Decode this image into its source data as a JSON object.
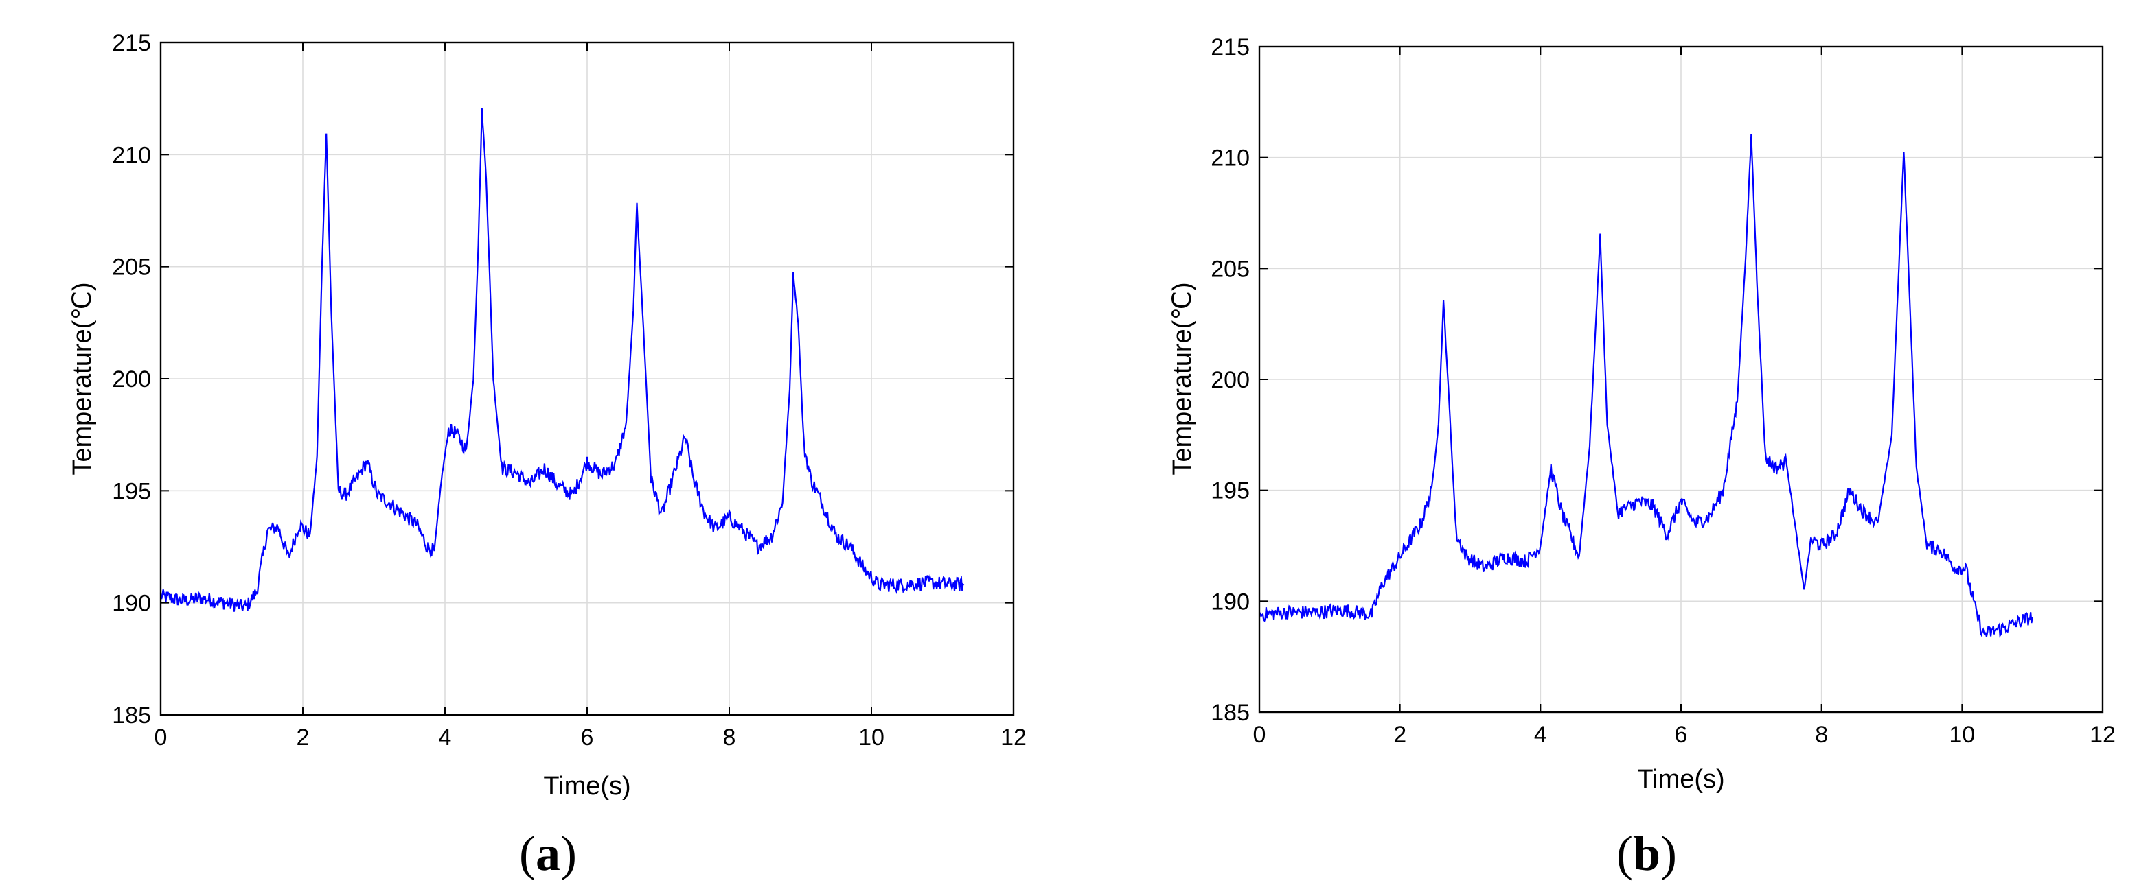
{
  "figure": {
    "panel_labels": [
      {
        "open": "(",
        "letter": "a",
        "close": ")"
      },
      {
        "open": "(",
        "letter": "b",
        "close": ")"
      }
    ]
  },
  "chart_data": [
    {
      "type": "line",
      "xlabel": "Time(s)",
      "ylabel": "Temperature(℃)",
      "xlim": [
        0,
        12
      ],
      "ylim": [
        185,
        215
      ],
      "xticks": [
        0,
        2,
        4,
        6,
        8,
        10,
        12
      ],
      "yticks": [
        185,
        190,
        195,
        200,
        205,
        210,
        215
      ],
      "grid": true,
      "line_color": "#0000ff",
      "series": [
        {
          "x": [
            0,
            0.3,
            0.6,
            0.9,
            1.2,
            1.35,
            1.5,
            1.65,
            1.8,
            1.95,
            2.1,
            2.2,
            2.27,
            2.33,
            2.4,
            2.5,
            2.6,
            2.75,
            2.9,
            3.05,
            3.2,
            3.4,
            3.6,
            3.75,
            3.85,
            3.95,
            4.05,
            4.15,
            4.3,
            4.4,
            4.47,
            4.52,
            4.58,
            4.68,
            4.8,
            5.0,
            5.2,
            5.4,
            5.6,
            5.8,
            6.0,
            6.2,
            6.4,
            6.55,
            6.65,
            6.7,
            6.78,
            6.9,
            7.05,
            7.2,
            7.38,
            7.5,
            7.65,
            7.8,
            8.0,
            8.2,
            8.4,
            8.6,
            8.75,
            8.85,
            8.9,
            8.97,
            9.05,
            9.15,
            9.3,
            9.5,
            9.7,
            9.9,
            10.1,
            10.4,
            10.8,
            11.3
          ],
          "y": [
            190.3,
            190.1,
            190.2,
            190.0,
            189.8,
            190.5,
            193.2,
            193.4,
            192.0,
            193.5,
            193.0,
            196.5,
            205.0,
            211.0,
            203.0,
            195.0,
            194.8,
            195.5,
            196.3,
            194.8,
            194.5,
            194.0,
            193.5,
            192.5,
            192.3,
            195.5,
            197.7,
            197.6,
            196.8,
            200.0,
            206.0,
            212.0,
            209.0,
            200.0,
            196.0,
            195.8,
            195.3,
            196.0,
            195.2,
            194.8,
            196.3,
            195.7,
            196.2,
            198.0,
            203.0,
            207.8,
            203.0,
            195.5,
            193.9,
            195.5,
            197.4,
            195.5,
            194.0,
            193.3,
            193.8,
            193.2,
            192.5,
            193.0,
            194.5,
            199.5,
            204.7,
            202.5,
            197.0,
            195.5,
            194.5,
            193.0,
            192.5,
            191.5,
            190.8,
            190.8,
            190.9,
            190.8
          ]
        }
      ]
    },
    {
      "type": "line",
      "xlabel": "Time(s)",
      "ylabel": "Temperature(℃)",
      "xlim": [
        0,
        12
      ],
      "ylim": [
        185,
        215
      ],
      "xticks": [
        0,
        2,
        4,
        6,
        8,
        10,
        12
      ],
      "yticks": [
        185,
        190,
        195,
        200,
        205,
        210,
        215
      ],
      "grid": true,
      "line_color": "#0000ff",
      "series": [
        {
          "x": [
            0,
            0.4,
            0.8,
            1.2,
            1.6,
            1.75,
            1.9,
            2.1,
            2.3,
            2.45,
            2.55,
            2.62,
            2.7,
            2.8,
            2.95,
            3.2,
            3.5,
            3.8,
            4.0,
            4.15,
            4.3,
            4.55,
            4.7,
            4.78,
            4.85,
            4.95,
            5.1,
            5.4,
            5.6,
            5.8,
            6.0,
            6.2,
            6.4,
            6.6,
            6.8,
            6.92,
            7.0,
            7.08,
            7.2,
            7.35,
            7.5,
            7.65,
            7.75,
            7.85,
            8.0,
            8.2,
            8.4,
            8.6,
            8.8,
            9.0,
            9.1,
            9.17,
            9.25,
            9.35,
            9.5,
            9.7,
            9.9,
            10.05,
            10.2,
            10.3,
            10.6,
            11.0
          ],
          "y": [
            189.4,
            189.5,
            189.5,
            189.6,
            189.4,
            190.8,
            191.5,
            192.5,
            193.5,
            195.0,
            198.0,
            203.5,
            199.0,
            193.0,
            192.0,
            191.5,
            192.0,
            191.8,
            192.5,
            196.0,
            194.0,
            192.0,
            197.0,
            202.0,
            206.5,
            198.0,
            194.0,
            194.5,
            194.3,
            193.0,
            194.5,
            193.5,
            193.8,
            195.0,
            199.0,
            205.5,
            211.0,
            204.5,
            196.5,
            196.0,
            196.3,
            192.8,
            190.5,
            192.8,
            192.5,
            193.0,
            195.0,
            194.0,
            193.5,
            197.5,
            205.0,
            210.3,
            204.0,
            196.0,
            192.5,
            192.3,
            191.5,
            191.5,
            189.5,
            188.5,
            188.8,
            189.3
          ]
        }
      ]
    }
  ]
}
